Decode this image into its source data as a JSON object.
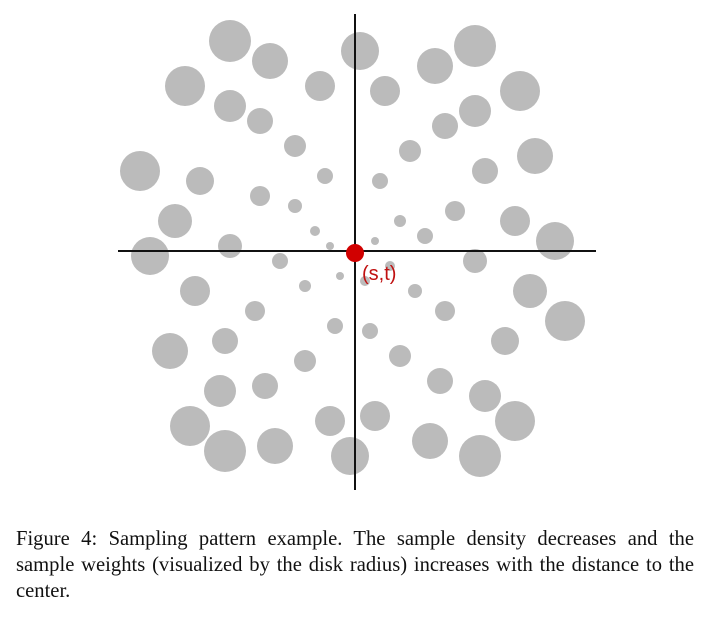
{
  "figure": {
    "center_label": "(s,t)",
    "caption": "Figure 4: Sampling pattern example. The sample density decreases and the sample weights (visualized by the disk radius) increases with the distance to the center."
  },
  "colors": {
    "disk": "#3c3c3c",
    "axis": "#111111",
    "center_point": "#d10000",
    "center_label": "#c01010"
  },
  "chart_data": {
    "type": "scatter",
    "title": "",
    "xlabel": "",
    "ylabel": "",
    "center": [
      0,
      0
    ],
    "series": [
      {
        "values": [
          {
            "x": 0,
            "y": 0,
            "r": 0
          },
          {
            "x": 20,
            "y": 10,
            "r": 4
          },
          {
            "x": -25,
            "y": 5,
            "r": 4
          },
          {
            "x": 10,
            "y": -30,
            "r": 5
          },
          {
            "x": -15,
            "y": -25,
            "r": 4
          },
          {
            "x": 35,
            "y": -15,
            "r": 5
          },
          {
            "x": -40,
            "y": 20,
            "r": 5
          },
          {
            "x": 45,
            "y": 30,
            "r": 6
          },
          {
            "x": -50,
            "y": -35,
            "r": 6
          },
          {
            "x": 60,
            "y": -40,
            "r": 7
          },
          {
            "x": -60,
            "y": 45,
            "r": 7
          },
          {
            "x": 70,
            "y": 15,
            "r": 8
          },
          {
            "x": -75,
            "y": -10,
            "r": 8
          },
          {
            "x": 25,
            "y": 70,
            "r": 8
          },
          {
            "x": -30,
            "y": 75,
            "r": 8
          },
          {
            "x": 15,
            "y": -80,
            "r": 8
          },
          {
            "x": -20,
            "y": -75,
            "r": 8
          },
          {
            "x": 90,
            "y": -60,
            "r": 10
          },
          {
            "x": -95,
            "y": 55,
            "r": 10
          },
          {
            "x": 100,
            "y": 40,
            "r": 10
          },
          {
            "x": -100,
            "y": -60,
            "r": 10
          },
          {
            "x": 55,
            "y": 100,
            "r": 11
          },
          {
            "x": -60,
            "y": 105,
            "r": 11
          },
          {
            "x": 45,
            "y": -105,
            "r": 11
          },
          {
            "x": -50,
            "y": -110,
            "r": 11
          },
          {
            "x": 120,
            "y": -10,
            "r": 12
          },
          {
            "x": -125,
            "y": 5,
            "r": 12
          },
          {
            "x": 130,
            "y": 80,
            "r": 13
          },
          {
            "x": -130,
            "y": -90,
            "r": 13
          },
          {
            "x": 90,
            "y": 125,
            "r": 13
          },
          {
            "x": -95,
            "y": 130,
            "r": 13
          },
          {
            "x": 85,
            "y": -130,
            "r": 13
          },
          {
            "x": -90,
            "y": -135,
            "r": 13
          },
          {
            "x": 150,
            "y": -90,
            "r": 14
          },
          {
            "x": -155,
            "y": 70,
            "r": 14
          },
          {
            "x": 160,
            "y": 30,
            "r": 15
          },
          {
            "x": -160,
            "y": -40,
            "r": 15
          },
          {
            "x": 30,
            "y": 160,
            "r": 15
          },
          {
            "x": -35,
            "y": 165,
            "r": 15
          },
          {
            "x": 20,
            "y": -165,
            "r": 15
          },
          {
            "x": -25,
            "y": -170,
            "r": 15
          },
          {
            "x": 120,
            "y": 140,
            "r": 16
          },
          {
            "x": -125,
            "y": 145,
            "r": 16
          },
          {
            "x": 130,
            "y": -145,
            "r": 16
          },
          {
            "x": -135,
            "y": -140,
            "r": 16
          },
          {
            "x": 175,
            "y": -40,
            "r": 17
          },
          {
            "x": -180,
            "y": 30,
            "r": 17
          },
          {
            "x": 180,
            "y": 95,
            "r": 18
          },
          {
            "x": -185,
            "y": -100,
            "r": 18
          },
          {
            "x": 80,
            "y": 185,
            "r": 18
          },
          {
            "x": -85,
            "y": 190,
            "r": 18
          },
          {
            "x": 75,
            "y": -190,
            "r": 18
          },
          {
            "x": -80,
            "y": -195,
            "r": 18
          },
          {
            "x": 200,
            "y": 10,
            "r": 19
          },
          {
            "x": -205,
            "y": -5,
            "r": 19
          },
          {
            "x": 5,
            "y": 200,
            "r": 19
          },
          {
            "x": -5,
            "y": -205,
            "r": 19
          },
          {
            "x": 165,
            "y": 160,
            "r": 20
          },
          {
            "x": -170,
            "y": 165,
            "r": 20
          },
          {
            "x": 160,
            "y": -170,
            "r": 20
          },
          {
            "x": -165,
            "y": -175,
            "r": 20
          },
          {
            "x": 210,
            "y": -70,
            "r": 20
          },
          {
            "x": -215,
            "y": 80,
            "r": 20
          },
          {
            "x": 120,
            "y": 205,
            "r": 21
          },
          {
            "x": -125,
            "y": 210,
            "r": 21
          },
          {
            "x": 125,
            "y": -205,
            "r": 21
          },
          {
            "x": -130,
            "y": -200,
            "r": 21
          }
        ]
      }
    ]
  }
}
